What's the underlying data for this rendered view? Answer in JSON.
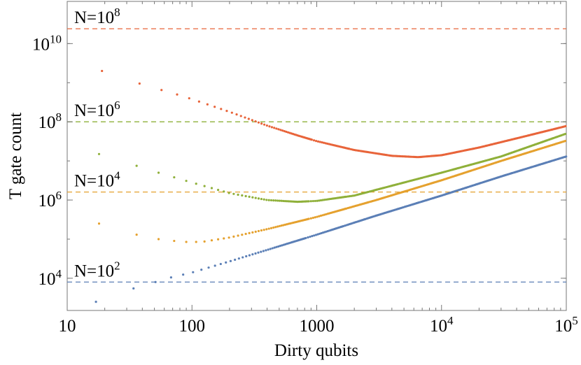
{
  "chart_data": {
    "type": "scatter",
    "title": "",
    "xlabel": "Dirty qubits",
    "ylabel": "T gate count",
    "xscale": "log",
    "yscale": "log",
    "xlim": [
      10,
      100000
    ],
    "ylim": [
      1500,
      120000000000.0
    ],
    "grid": false,
    "x_ticks": [
      {
        "value": 10,
        "base": "10",
        "exp": ""
      },
      {
        "value": 100,
        "base": "100",
        "exp": ""
      },
      {
        "value": 1000,
        "base": "1000",
        "exp": ""
      },
      {
        "value": 10000,
        "base": "10",
        "exp": "4"
      },
      {
        "value": 100000,
        "base": "10",
        "exp": "5"
      }
    ],
    "y_ticks": [
      {
        "value": 10000,
        "base": "10",
        "exp": "4"
      },
      {
        "value": 1000000,
        "base": "10",
        "exp": "6"
      },
      {
        "value": 100000000,
        "base": "10",
        "exp": "8"
      },
      {
        "value": 10000000000,
        "base": "10",
        "exp": "10"
      }
    ],
    "series": [
      {
        "annotation": {
          "base": "N=10",
          "exp": "8"
        },
        "color": "#E8643A",
        "reference_level": 24000000000.0,
        "points": [
          [
            19,
            2000000000.0
          ],
          [
            38,
            950000000.0
          ],
          [
            57,
            650000000.0
          ],
          [
            76,
            500000000.0
          ],
          [
            100,
            380000000.0
          ],
          [
            200,
            180000000.0
          ],
          [
            400,
            80000000.0
          ],
          [
            700,
            45000000.0
          ],
          [
            1000,
            32000000.0
          ],
          [
            2000,
            19000000.0
          ],
          [
            4000,
            13500000.0
          ],
          [
            6500,
            12500000.0
          ],
          [
            10000,
            14000000.0
          ],
          [
            20000,
            22000000.0
          ],
          [
            50000,
            45000000.0
          ],
          [
            100000,
            78000000.0
          ]
        ]
      },
      {
        "annotation": {
          "base": "N=10",
          "exp": "6"
        },
        "color": "#8FB03A",
        "reference_level": 100000000.0,
        "points": [
          [
            18,
            15000000.0
          ],
          [
            36,
            7500000.0
          ],
          [
            54,
            5000000.0
          ],
          [
            72,
            3800000.0
          ],
          [
            100,
            2800000.0
          ],
          [
            200,
            1500000.0
          ],
          [
            400,
            1000000.0
          ],
          [
            700,
            900000.0
          ],
          [
            1000,
            950000.0
          ],
          [
            2000,
            1300000.0
          ],
          [
            5000,
            2800000.0
          ],
          [
            10000,
            5000000.0
          ],
          [
            30000,
            13000000.0
          ],
          [
            100000,
            50000000.0
          ]
        ]
      },
      {
        "annotation": {
          "base": "N=10",
          "exp": "4"
        },
        "color": "#E5A12E",
        "reference_level": 1600000.0,
        "points": [
          [
            18,
            250000.0
          ],
          [
            36,
            130000.0
          ],
          [
            54,
            100000.0
          ],
          [
            72,
            90000.0
          ],
          [
            90,
            85000.0
          ],
          [
            120,
            85000.0
          ],
          [
            200,
            110000.0
          ],
          [
            400,
            180000.0
          ],
          [
            1000,
            370000.0
          ],
          [
            3000,
            1000000.0
          ],
          [
            10000,
            3200000.0
          ],
          [
            30000,
            10000000.0
          ],
          [
            100000,
            33000000.0
          ]
        ]
      },
      {
        "annotation": {
          "base": "N=10",
          "exp": "2"
        },
        "color": "#5B7FB6",
        "reference_level": 8000.0,
        "points": [
          [
            17,
            2500.0
          ],
          [
            34,
            5500.0
          ],
          [
            51,
            8000.0
          ],
          [
            68,
            10500.0
          ],
          [
            100,
            14000.0
          ],
          [
            200,
            27000.0
          ],
          [
            400,
            53000.0
          ],
          [
            1000,
            130000.0
          ],
          [
            3000,
            400000.0
          ],
          [
            10000,
            1300000.0
          ],
          [
            30000,
            4000000.0
          ],
          [
            100000,
            13000000.0
          ]
        ]
      }
    ]
  }
}
